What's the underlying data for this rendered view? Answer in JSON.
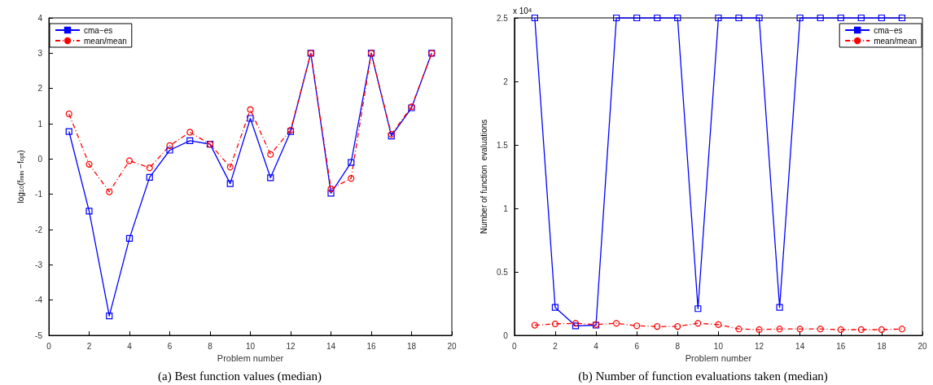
{
  "chart_data": [
    {
      "type": "line",
      "xlabel": "Problem number",
      "ylabel": "log$_{10}$(f$_{min}$ −f$_{opt}$)",
      "x": [
        1,
        2,
        3,
        4,
        5,
        6,
        7,
        8,
        9,
        10,
        11,
        12,
        13,
        14,
        15,
        16,
        17,
        18,
        19
      ],
      "series": [
        {
          "name": "cma−es",
          "color": "#0000ff",
          "marker": "square",
          "line_style": "solid",
          "values": [
            0.78,
            -1.48,
            -4.45,
            -2.25,
            -0.52,
            0.25,
            0.52,
            0.42,
            -0.7,
            1.15,
            -0.53,
            0.78,
            3.0,
            -0.97,
            -0.1,
            3.0,
            0.65,
            1.45,
            3.0
          ]
        },
        {
          "name": "mean/mean",
          "color": "#ff0000",
          "marker": "circle",
          "line_style": "dashed",
          "values": [
            1.28,
            -0.15,
            -0.93,
            -0.05,
            -0.25,
            0.38,
            0.76,
            0.42,
            -0.23,
            1.4,
            0.13,
            0.82,
            3.0,
            -0.85,
            -0.55,
            3.0,
            0.7,
            1.48,
            3.0
          ]
        }
      ],
      "xlim": [
        0,
        20
      ],
      "xticks": [
        0,
        2,
        4,
        6,
        8,
        10,
        12,
        14,
        16,
        18,
        20
      ],
      "ylim": [
        -5,
        4
      ],
      "yticks": [
        -5,
        -4,
        -3,
        -2,
        -1,
        0,
        1,
        2,
        3,
        4
      ],
      "grid": false,
      "legend": "top left",
      "annotations": [
        "(a) Best function values (median)"
      ]
    },
    {
      "type": "line",
      "xlabel": "Problem number",
      "ylabel": "Number of function  evaluations",
      "x": [
        1,
        2,
        3,
        4,
        5,
        6,
        7,
        8,
        9,
        10,
        11,
        12,
        13,
        14,
        15,
        16,
        17,
        18,
        19
      ],
      "series": [
        {
          "name": "cma−es",
          "color": "#0000ff",
          "marker": "square",
          "line_style": "solid",
          "values": [
            2.5,
            0.22,
            0.075,
            0.08,
            2.5,
            2.5,
            2.5,
            2.5,
            0.21,
            2.5,
            2.5,
            2.5,
            0.22,
            2.5,
            2.5,
            2.5,
            2.5,
            2.5,
            2.5
          ]
        },
        {
          "name": "mean/mean",
          "color": "#ff0000",
          "marker": "circle",
          "line_style": "dashed",
          "values": [
            0.08,
            0.09,
            0.095,
            0.085,
            0.095,
            0.075,
            0.07,
            0.07,
            0.095,
            0.085,
            0.05,
            0.045,
            0.05,
            0.05,
            0.05,
            0.045,
            0.045,
            0.045,
            0.05
          ]
        }
      ],
      "xlim": [
        0,
        20
      ],
      "xticks": [
        0,
        2,
        4,
        6,
        8,
        10,
        12,
        14,
        16,
        18,
        20
      ],
      "ylim": [
        0,
        2.5
      ],
      "yticks": [
        0,
        0.5,
        1,
        1.5,
        2,
        2.5
      ],
      "grid": false,
      "legend": "top right",
      "annotations": [
        "x 10$^{4}$",
        "(b) Number of function evaluations taken (median)"
      ]
    }
  ]
}
